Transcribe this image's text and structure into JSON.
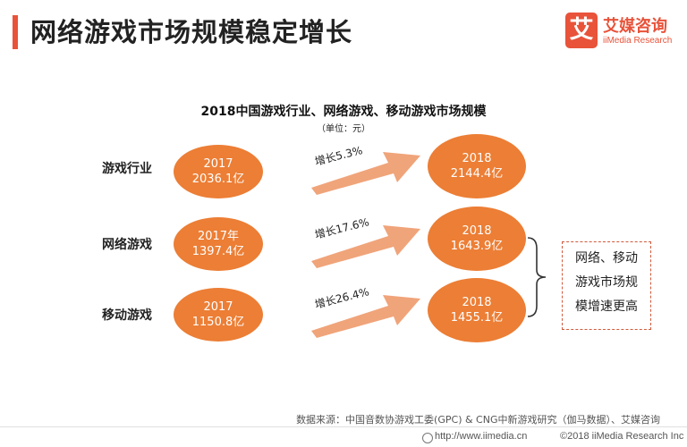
{
  "header": {
    "title": "网络游戏市场规模稳定增长"
  },
  "logo": {
    "mark": "艾",
    "name": "艾媒咨询",
    "subtitle": "iiMedia Research"
  },
  "colors": {
    "accent": "#e8533a",
    "bubble": "#ec7e35",
    "arrow": "#f0a47a"
  },
  "chart_data": {
    "type": "table",
    "title": "2018中国游戏行业、网络游戏、移动游戏市场规模",
    "unit": "（单位：元）",
    "rows": [
      {
        "label": "游戏行业",
        "from_year": "2017",
        "from_value": "2036.1亿",
        "growth": "增长5.3%",
        "to_year": "2018",
        "to_value": "2144.4亿"
      },
      {
        "label": "网络游戏",
        "from_year": "2017年",
        "from_value": "1397.4亿",
        "growth": "增长17.6%",
        "to_year": "2018",
        "to_value": "1643.9亿"
      },
      {
        "label": "移动游戏",
        "from_year": "2017",
        "from_value": "1150.8亿",
        "growth": "增长26.4%",
        "to_year": "2018",
        "to_value": "1455.1亿"
      }
    ],
    "values": [
      {
        "category": "游戏行业",
        "value_2017": 2036.1,
        "value_2018": 2144.4,
        "growth_pct": 5.3
      },
      {
        "category": "网络游戏",
        "value_2017": 1397.4,
        "value_2018": 1643.9,
        "growth_pct": 17.6
      },
      {
        "category": "移动游戏",
        "value_2017": 1150.8,
        "value_2018": 1455.1,
        "growth_pct": 26.4
      }
    ]
  },
  "note": {
    "lines": [
      "网络、移动",
      "游戏市场规",
      "模增速更高"
    ]
  },
  "source": "数据来源：中国音数协游戏工委(GPC) & CNG中新游戏研究（伽马数据）、艾媒咨询",
  "footer": {
    "site": "http://www.iimedia.cn",
    "copyright": "©2018  iiMedia Research  Inc"
  }
}
